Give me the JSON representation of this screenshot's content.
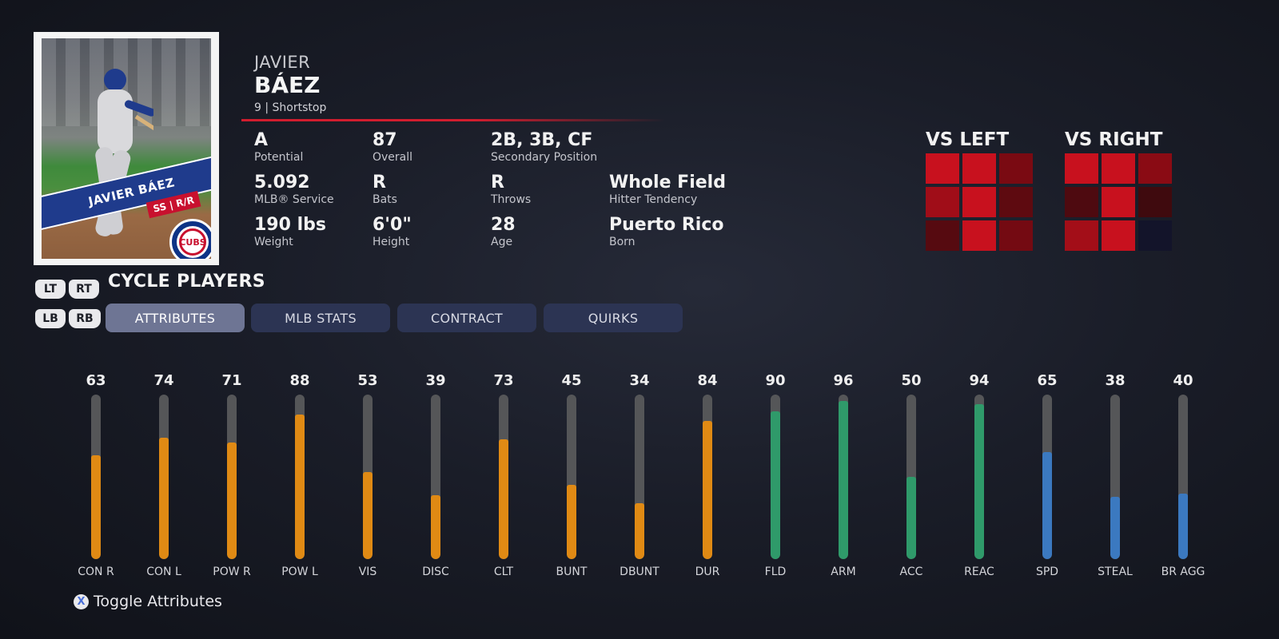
{
  "player": {
    "first_name": "JAVIER",
    "last_name": "BÁEZ",
    "number_position": "9 | Shortstop",
    "card_name": "JAVIER BÁEZ",
    "card_tag": "SS | R/R",
    "team_logo_text": "CUBS"
  },
  "info": [
    {
      "value": "A",
      "label": "Potential"
    },
    {
      "value": "87",
      "label": "Overall"
    },
    {
      "value": "2B, 3B, CF",
      "label": "Secondary Position"
    },
    {
      "value": "5.092",
      "label": "MLB® Service"
    },
    {
      "value": "R",
      "label": "Bats"
    },
    {
      "value": "R",
      "label": "Throws"
    },
    {
      "value": "Whole Field",
      "label": "Hitter Tendency"
    },
    {
      "value": "190 lbs",
      "label": "Weight"
    },
    {
      "value": "6'0\"",
      "label": "Height"
    },
    {
      "value": "28",
      "label": "Age"
    },
    {
      "value": "Puerto Rico",
      "label": "Born"
    }
  ],
  "heatmaps": {
    "vs_left": {
      "title": "VS LEFT",
      "cells": [
        "#c8111e",
        "#c8111e",
        "#7a0a12",
        "#a00d18",
        "#c8111e",
        "#5e0a10",
        "#560a10",
        "#c8111e",
        "#740a12"
      ]
    },
    "vs_right": {
      "title": "VS RIGHT",
      "cells": [
        "#c8111e",
        "#c8111e",
        "#8a0b14",
        "#4e0a10",
        "#c8111e",
        "#3f0a0e",
        "#a30e18",
        "#c8111e",
        "#13142a"
      ]
    }
  },
  "cycle": {
    "lt": "LT",
    "rt": "RT",
    "label": "CYCLE PLAYERS",
    "lb": "LB",
    "rb": "RB"
  },
  "tabs": [
    "ATTRIBUTES",
    "MLB STATS",
    "CONTRACT",
    "QUIRKS"
  ],
  "active_tab": 0,
  "colors": {
    "hitting": "#e08a14",
    "fielding": "#2f9a6a",
    "running": "#3b79c0",
    "track": "#555658"
  },
  "attributes": [
    {
      "label": "CON R",
      "value": 63,
      "group": "hitting"
    },
    {
      "label": "CON L",
      "value": 74,
      "group": "hitting"
    },
    {
      "label": "POW R",
      "value": 71,
      "group": "hitting"
    },
    {
      "label": "POW L",
      "value": 88,
      "group": "hitting"
    },
    {
      "label": "VIS",
      "value": 53,
      "group": "hitting"
    },
    {
      "label": "DISC",
      "value": 39,
      "group": "hitting"
    },
    {
      "label": "CLT",
      "value": 73,
      "group": "hitting"
    },
    {
      "label": "BUNT",
      "value": 45,
      "group": "hitting"
    },
    {
      "label": "DBUNT",
      "value": 34,
      "group": "hitting"
    },
    {
      "label": "DUR",
      "value": 84,
      "group": "hitting"
    },
    {
      "label": "FLD",
      "value": 90,
      "group": "fielding"
    },
    {
      "label": "ARM",
      "value": 96,
      "group": "fielding"
    },
    {
      "label": "ACC",
      "value": 50,
      "group": "fielding"
    },
    {
      "label": "REAC",
      "value": 94,
      "group": "fielding"
    },
    {
      "label": "SPD",
      "value": 65,
      "group": "running"
    },
    {
      "label": "STEAL",
      "value": 38,
      "group": "running"
    },
    {
      "label": "BR AGG",
      "value": 40,
      "group": "running"
    }
  ],
  "footer": {
    "button": "X",
    "label": "Toggle Attributes"
  }
}
